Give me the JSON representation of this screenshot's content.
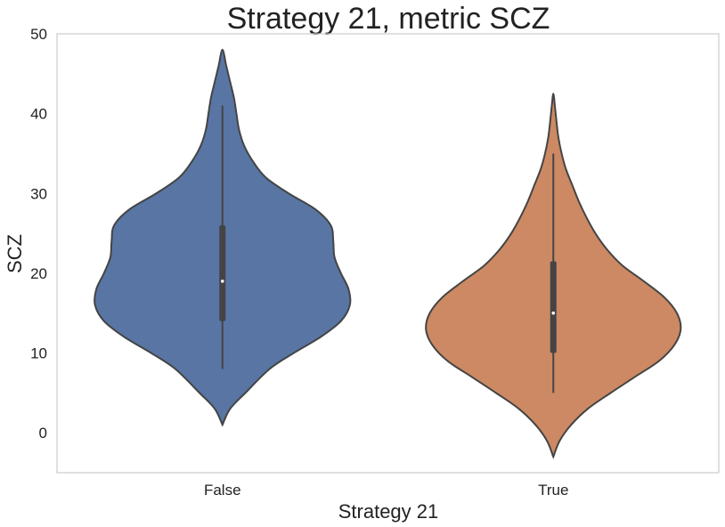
{
  "chart_data": {
    "type": "violin",
    "title": "Strategy 21, metric SCZ",
    "xlabel": "Strategy 21",
    "ylabel": "SCZ",
    "categories": [
      "False",
      "True"
    ],
    "ylim": [
      -5,
      50
    ],
    "yticks": [
      0,
      10,
      20,
      30,
      40,
      50
    ],
    "grid": false,
    "series": [
      {
        "category": "False",
        "color": "#5875a4",
        "density_min": 1,
        "density_max": 48,
        "whisker_low": 8,
        "q1": 14,
        "median": 19,
        "q3": 26,
        "whisker_high": 41,
        "density_profile": [
          [
            1,
            0.0
          ],
          [
            3,
            0.06
          ],
          [
            5,
            0.18
          ],
          [
            8,
            0.37
          ],
          [
            10,
            0.56
          ],
          [
            12,
            0.77
          ],
          [
            14,
            0.93
          ],
          [
            16,
            1.0
          ],
          [
            18,
            0.99
          ],
          [
            20,
            0.93
          ],
          [
            22,
            0.88
          ],
          [
            24,
            0.87
          ],
          [
            26,
            0.85
          ],
          [
            28,
            0.73
          ],
          [
            30,
            0.52
          ],
          [
            32,
            0.34
          ],
          [
            34,
            0.24
          ],
          [
            36,
            0.17
          ],
          [
            38,
            0.13
          ],
          [
            40,
            0.11
          ],
          [
            42,
            0.09
          ],
          [
            44,
            0.06
          ],
          [
            46,
            0.03
          ],
          [
            48,
            0.0
          ]
        ]
      },
      {
        "category": "True",
        "color": "#cc8963",
        "density_min": -3,
        "density_max": 42.5,
        "whisker_low": 5,
        "q1": 10,
        "median": 15,
        "q3": 21.5,
        "whisker_high": 35,
        "density_profile": [
          [
            -3,
            0.0
          ],
          [
            -1,
            0.05
          ],
          [
            1,
            0.14
          ],
          [
            3,
            0.27
          ],
          [
            5,
            0.45
          ],
          [
            7,
            0.64
          ],
          [
            9,
            0.83
          ],
          [
            11,
            0.95
          ],
          [
            13,
            1.0
          ],
          [
            15,
            0.97
          ],
          [
            17,
            0.87
          ],
          [
            19,
            0.71
          ],
          [
            21,
            0.54
          ],
          [
            23,
            0.42
          ],
          [
            25,
            0.33
          ],
          [
            27,
            0.26
          ],
          [
            29,
            0.2
          ],
          [
            31,
            0.15
          ],
          [
            33,
            0.1
          ],
          [
            35,
            0.065
          ],
          [
            37,
            0.04
          ],
          [
            39,
            0.025
          ],
          [
            41,
            0.012
          ],
          [
            42.5,
            0.0
          ]
        ]
      }
    ]
  }
}
